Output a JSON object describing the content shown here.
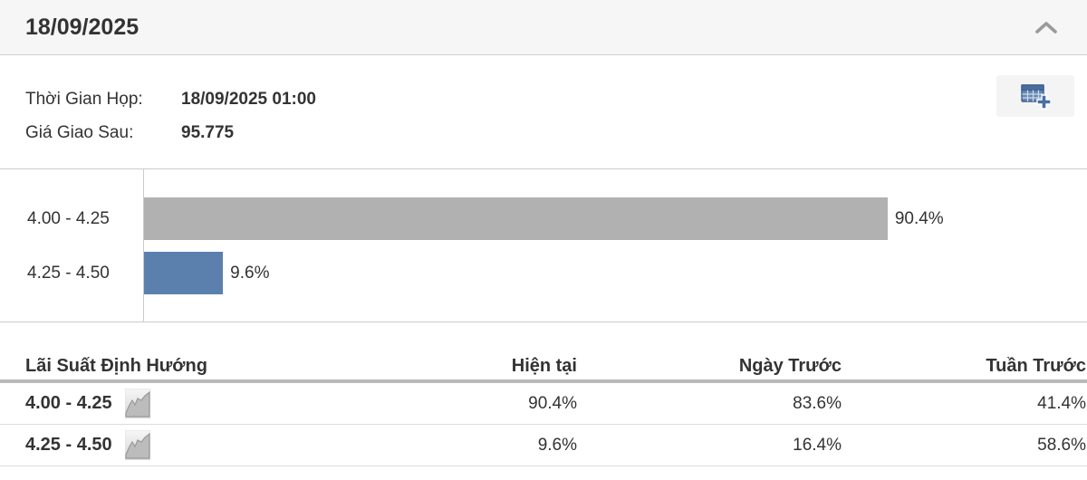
{
  "header": {
    "title": "18/09/2025",
    "collapse_icon": "chevron-up-icon"
  },
  "info": {
    "meeting_time_label": "Thời Gian Họp:",
    "meeting_time_value": "18/09/2025 01:00",
    "futures_price_label": "Giá Giao Sau:",
    "futures_price_value": "95.775",
    "export_icon": "table-add-icon"
  },
  "chart_data": {
    "type": "bar",
    "orientation": "horizontal",
    "categories": [
      "4.00 - 4.25",
      "4.25 - 4.50"
    ],
    "values": [
      90.4,
      9.6
    ],
    "value_labels": [
      "90.4%",
      "9.6%"
    ],
    "bar_colors": [
      "#b1b1b1",
      "#5c80ae"
    ],
    "xlim": [
      0,
      100
    ],
    "grid": false,
    "legend": false,
    "title": "",
    "xlabel": "",
    "ylabel": ""
  },
  "table": {
    "columns": [
      "Lãi Suất Định Hướng",
      "Hiện tại",
      "Ngày Trước",
      "Tuần Trước"
    ],
    "rows": [
      {
        "rate": "4.00 - 4.25",
        "icon": "sparkline-icon",
        "current": "90.4%",
        "previous_day": "83.6%",
        "previous_week": "41.4%"
      },
      {
        "rate": "4.25 - 4.50",
        "icon": "sparkline-icon",
        "current": "9.6%",
        "previous_day": "16.4%",
        "previous_week": "58.6%"
      }
    ]
  },
  "colors": {
    "header_bg": "#f6f6f6",
    "divider": "#cccccc",
    "bar_gray": "#b1b1b1",
    "bar_blue": "#5c80ae",
    "icon_blue": "#4a6fa5",
    "text": "#333333"
  }
}
